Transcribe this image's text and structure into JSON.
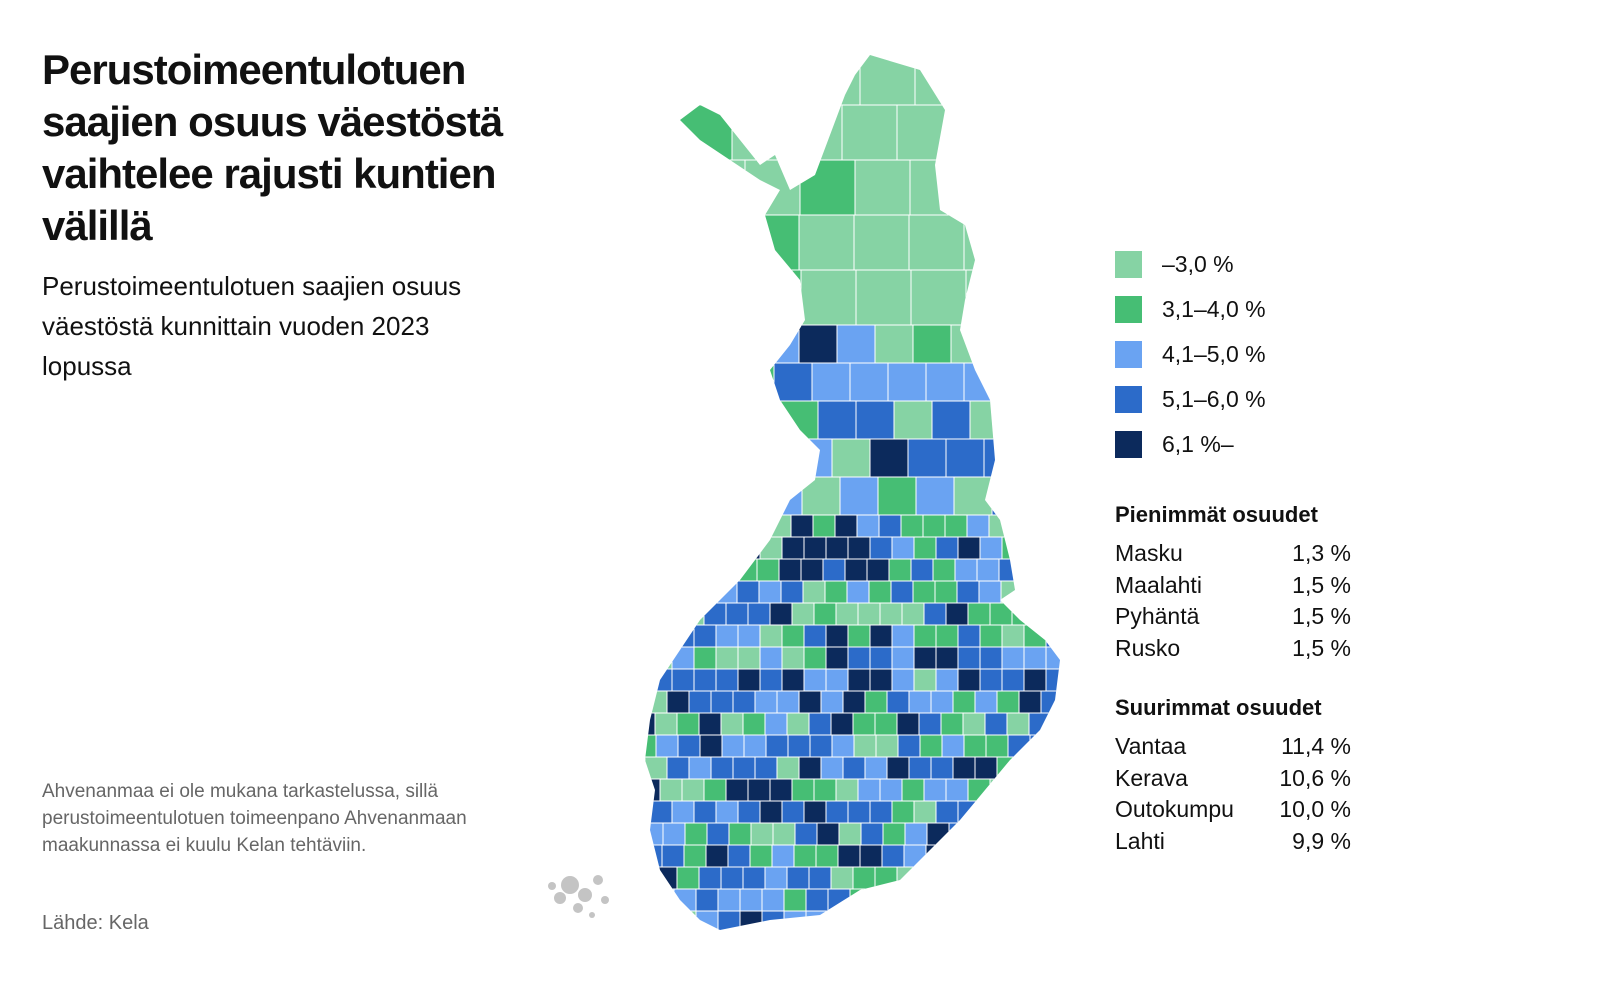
{
  "header": {
    "title": "Perustoimeentulotuen saajien osuus väestöstä vaihtelee rajusti kuntien välillä",
    "subtitle": "Perustoimeentulotuen saajien osuus väestöstä kunnittain vuoden 2023 lopussa"
  },
  "legend": [
    {
      "label": "–3,0 %",
      "color": "#86d3a4"
    },
    {
      "label": "3,1–4,0 %",
      "color": "#46be74"
    },
    {
      "label": "4,1–5,0 %",
      "color": "#6aa3f2"
    },
    {
      "label": "5,1–6,0 %",
      "color": "#2c6bc9"
    },
    {
      "label": "6,1 %–",
      "color": "#0c2a5c"
    }
  ],
  "smallest": {
    "title": "Pienimmät osuudet",
    "rows": [
      [
        "Masku",
        "1,3 %"
      ],
      [
        "Maalahti",
        "1,5 %"
      ],
      [
        "Pyhäntä",
        "1,5 %"
      ],
      [
        "Rusko",
        "1,5 %"
      ]
    ]
  },
  "largest": {
    "title": "Suurimmat osuudet",
    "rows": [
      [
        "Vantaa",
        "11,4 %"
      ],
      [
        "Kerava",
        "10,6 %"
      ],
      [
        "Outokumpu",
        "10,0 %"
      ],
      [
        "Lahti",
        "9,9 %"
      ]
    ]
  },
  "note": "Ahvenanmaa ei ole mukana tarkastelussa, sillä perustoimeentulotuen toimeenpano Ahvenanmaan maakunnassa ei kuulu Kelan tehtäviin.",
  "source": "Lähde: Kela"
}
